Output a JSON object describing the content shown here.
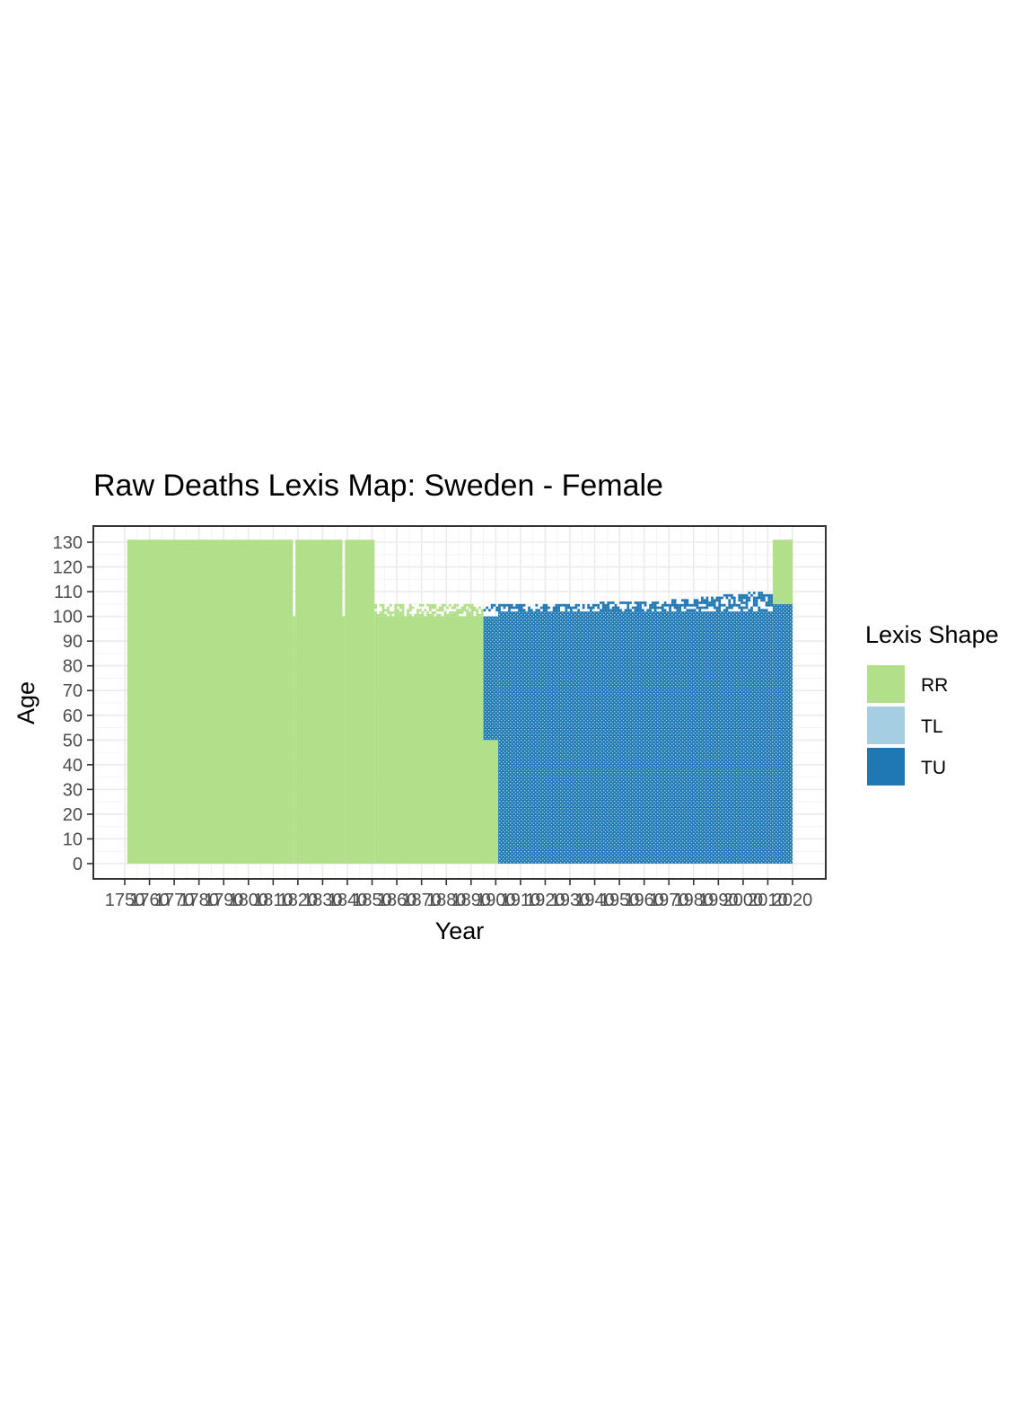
{
  "colors": {
    "RR": "#B2DF8A",
    "TL": "#A6CEE3",
    "TU": "#1F78B4",
    "grid_major": "#EBEBEB",
    "grid_minor": "#F4F4F4",
    "panel_border": "#333333",
    "tick_label": "#4D4D4D"
  },
  "chart_data": {
    "type": "heatmap",
    "title": "Raw Deaths Lexis Map: Sweden - Female",
    "xlabel": "Year",
    "ylabel": "Age",
    "xlim": [
      1738,
      1870
    ],
    "ylim": [
      -5,
      136
    ],
    "x_ticks": [
      1750,
      1760,
      1770,
      1780,
      1790,
      1800,
      1810,
      1820,
      1830,
      1840,
      1850,
      1860,
      1870,
      1880,
      1890,
      1900,
      1910,
      1920,
      1930,
      1940,
      1950,
      1960,
      1970,
      1980,
      1990,
      2000,
      2010,
      2020
    ],
    "x_tick_labels": [
      "1750",
      "1760",
      "1770",
      "1780",
      "1790",
      "1800",
      "1810",
      "1820",
      "1830",
      "1840",
      "1850",
      "1860",
      "1870",
      "1880",
      "1890",
      "1900",
      "1910",
      "1920",
      "1930",
      "1940",
      "1950",
      "1960",
      "1970",
      "1980",
      "1990",
      "2000",
      "2010",
      "2020"
    ],
    "y_ticks": [
      0,
      10,
      20,
      30,
      40,
      50,
      60,
      70,
      80,
      90,
      100,
      110,
      120,
      130
    ],
    "y_tick_labels": [
      "0",
      "10",
      "20",
      "30",
      "40",
      "50",
      "60",
      "70",
      "80",
      "90",
      "100",
      "110",
      "120",
      "130"
    ],
    "grid": true,
    "legend": {
      "title": "Lexis Shape",
      "position": "right",
      "entries": [
        "RR",
        "TL",
        "TU"
      ]
    },
    "regions": [
      {
        "shape": "RR",
        "year_from": 1751,
        "year_to": 1818,
        "age_from": 0,
        "age_to": 131
      },
      {
        "shape": "RR",
        "year_from": 1819,
        "year_to": 1838,
        "age_from": 0,
        "age_to": 131
      },
      {
        "shape": "RR",
        "year_from": 1839,
        "year_to": 1851,
        "age_from": 0,
        "age_to": 131
      },
      {
        "shape": "RR",
        "year_from": 1818,
        "year_to": 1819,
        "age_from": 0,
        "age_to": 100
      },
      {
        "shape": "RR",
        "year_from": 1838,
        "year_to": 1839,
        "age_from": 0,
        "age_to": 100
      },
      {
        "shape": "RR",
        "year_from": 1851,
        "year_to": 1895,
        "age_from": 0,
        "age_to": 100
      },
      {
        "shape": "RR",
        "year_from": 1895,
        "year_to": 1901,
        "age_from": 0,
        "age_to": 50
      },
      {
        "shape": "TU",
        "year_from": 1895,
        "year_to": 1901,
        "age_from": 50,
        "age_to": 100
      },
      {
        "shape": "TU",
        "year_from": 1901,
        "year_to": 2012,
        "age_from": 0,
        "age_to": 102
      },
      {
        "shape": "TU",
        "year_from": 2012,
        "year_to": 2020,
        "age_from": 0,
        "age_to": 105
      },
      {
        "shape": "RR",
        "year_from": 2012,
        "year_to": 2020,
        "age_from": 105,
        "age_to": 131
      }
    ],
    "upper_edge": [
      {
        "shape": "RR",
        "years": [
          1851,
          1895
        ],
        "max_age": [
          105,
          104
        ]
      },
      {
        "shape": "TU",
        "years": [
          1895,
          1940,
          1970,
          1990,
          2012
        ],
        "max_age": [
          104,
          105,
          106,
          108,
          110
        ]
      }
    ]
  }
}
